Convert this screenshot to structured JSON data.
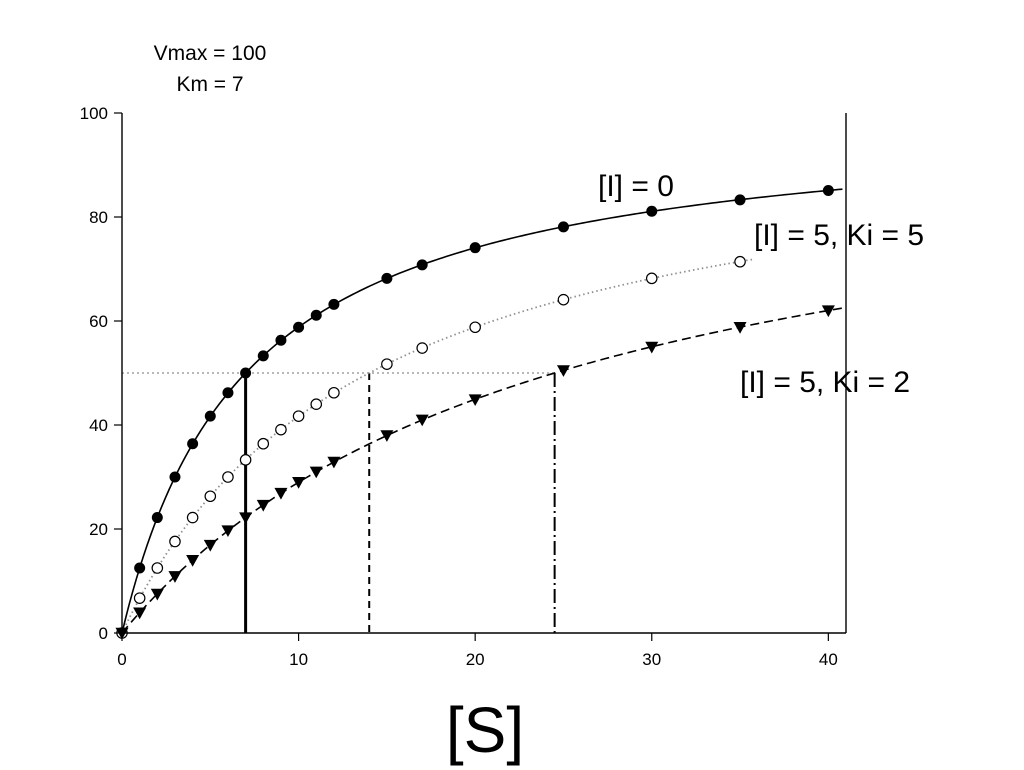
{
  "annotation": {
    "vmax_text": "Vmax = 100",
    "km_text": "Km = 7"
  },
  "chart_data": {
    "type": "scatter",
    "title": "",
    "xlabel": "[S]",
    "ylabel": "",
    "xlim": [
      0,
      41
    ],
    "ylim": [
      0,
      100
    ],
    "x_ticks": [
      0,
      10,
      20,
      30,
      40
    ],
    "y_ticks": [
      0,
      20,
      40,
      60,
      80,
      100
    ],
    "grid": false,
    "vmax": 100,
    "half_vmax": 50,
    "series": [
      {
        "name": "[I] = 0",
        "marker": "filled-circle",
        "line_style": "solid",
        "km_apparent": 7,
        "points": [
          [
            0,
            0
          ],
          [
            1,
            12.5
          ],
          [
            2,
            22.2
          ],
          [
            3,
            30
          ],
          [
            4,
            36.4
          ],
          [
            5,
            41.7
          ],
          [
            6,
            46.2
          ],
          [
            7,
            50
          ],
          [
            8,
            53.3
          ],
          [
            9,
            56.3
          ],
          [
            10,
            58.8
          ],
          [
            11,
            61.1
          ],
          [
            12,
            63.2
          ],
          [
            15,
            68.2
          ],
          [
            17,
            70.8
          ],
          [
            20,
            74.1
          ],
          [
            25,
            78.1
          ],
          [
            30,
            81.1
          ],
          [
            35,
            83.3
          ],
          [
            40,
            85.1
          ]
        ]
      },
      {
        "name": "[I] = 5, Ki = 5",
        "marker": "open-circle",
        "line_style": "dotted",
        "km_apparent": 14,
        "points": [
          [
            0,
            0
          ],
          [
            1,
            6.7
          ],
          [
            2,
            12.5
          ],
          [
            3,
            17.6
          ],
          [
            4,
            22.2
          ],
          [
            5,
            26.3
          ],
          [
            6,
            30
          ],
          [
            7,
            33.3
          ],
          [
            8,
            36.4
          ],
          [
            9,
            39.1
          ],
          [
            10,
            41.7
          ],
          [
            11,
            44
          ],
          [
            12,
            46.2
          ],
          [
            15,
            51.7
          ],
          [
            17,
            54.8
          ],
          [
            20,
            58.8
          ],
          [
            25,
            64.1
          ],
          [
            30,
            68.2
          ],
          [
            35,
            71.4
          ]
        ]
      },
      {
        "name": "[I] = 5, Ki = 2",
        "marker": "filled-triangle-down",
        "line_style": "dashed",
        "km_apparent": 24.5,
        "points": [
          [
            0,
            0
          ],
          [
            1,
            3.9
          ],
          [
            2,
            7.5
          ],
          [
            3,
            10.9
          ],
          [
            4,
            14
          ],
          [
            5,
            16.9
          ],
          [
            6,
            19.7
          ],
          [
            7,
            22.2
          ],
          [
            8,
            24.6
          ],
          [
            9,
            26.9
          ],
          [
            10,
            29
          ],
          [
            11,
            31
          ],
          [
            12,
            32.9
          ],
          [
            15,
            38
          ],
          [
            17,
            41
          ],
          [
            20,
            44.9
          ],
          [
            25,
            50.5
          ],
          [
            30,
            55
          ],
          [
            35,
            58.8
          ],
          [
            40,
            62
          ]
        ]
      }
    ]
  }
}
